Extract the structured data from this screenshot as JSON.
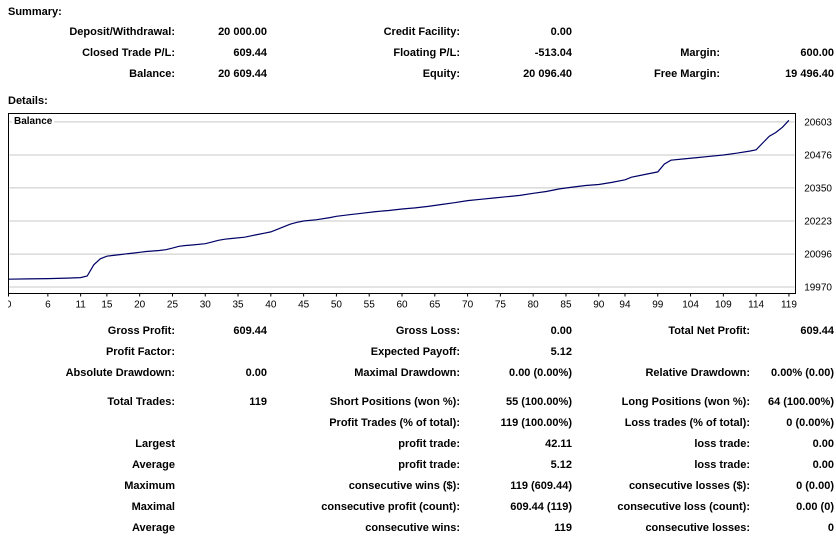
{
  "summary": {
    "heading": "Summary:",
    "rows": [
      [
        {
          "label": "Deposit/Withdrawal:",
          "value": "20 000.00"
        },
        {
          "label": "Credit Facility:",
          "value": "0.00"
        },
        {
          "label": "",
          "value": ""
        }
      ],
      [
        {
          "label": "Closed Trade P/L:",
          "value": "609.44"
        },
        {
          "label": "Floating P/L:",
          "value": "-513.04"
        },
        {
          "label": "Margin:",
          "value": "600.00"
        }
      ],
      [
        {
          "label": "Balance:",
          "value": "20 609.44"
        },
        {
          "label": "Equity:",
          "value": "20 096.40"
        },
        {
          "label": "Free Margin:",
          "value": "19 496.40"
        }
      ]
    ]
  },
  "details": {
    "heading": "Details:",
    "rows": [
      [
        {
          "label": "Gross Profit:",
          "value": "609.44"
        },
        {
          "label": "Gross Loss:",
          "value": "0.00"
        },
        {
          "label": "Total Net Profit:",
          "value": "609.44"
        }
      ],
      [
        {
          "label": "Profit Factor:",
          "value": ""
        },
        {
          "label": "Expected Payoff:",
          "value": "5.12"
        },
        {
          "label": "",
          "value": ""
        }
      ],
      [
        {
          "label": "Absolute Drawdown:",
          "value": "0.00"
        },
        {
          "label": "Maximal Drawdown:",
          "value": "0.00 (0.00%)"
        },
        {
          "label": "Relative Drawdown:",
          "value": "0.00% (0.00)"
        }
      ],
      "gap",
      [
        {
          "label": "Total Trades:",
          "value": "119"
        },
        {
          "label": "Short Positions (won %):",
          "value": "55 (100.00%)"
        },
        {
          "label": "Long Positions (won %):",
          "value": "64 (100.00%)"
        }
      ],
      [
        {
          "label": "",
          "value": ""
        },
        {
          "label": "Profit Trades (% of total):",
          "value": "119 (100.00%)"
        },
        {
          "label": "Loss trades (% of total):",
          "value": "0 (0.00%)"
        }
      ],
      [
        {
          "label": "Largest",
          "value": ""
        },
        {
          "label": "profit trade:",
          "value": "42.11"
        },
        {
          "label": "loss trade:",
          "value": "0.00"
        }
      ],
      [
        {
          "label": "Average",
          "value": ""
        },
        {
          "label": "profit trade:",
          "value": "5.12"
        },
        {
          "label": "loss trade:",
          "value": "0.00"
        }
      ],
      [
        {
          "label": "Maximum",
          "value": ""
        },
        {
          "label": "consecutive wins ($):",
          "value": "119 (609.44)"
        },
        {
          "label": "consecutive losses ($):",
          "value": "0 (0.00)"
        }
      ],
      [
        {
          "label": "Maximal",
          "value": ""
        },
        {
          "label": "consecutive profit (count):",
          "value": "609.44 (119)"
        },
        {
          "label": "consecutive loss (count):",
          "value": "0.00 (0)"
        }
      ],
      [
        {
          "label": "Average",
          "value": ""
        },
        {
          "label": "consecutive wins:",
          "value": "119"
        },
        {
          "label": "consecutive losses:",
          "value": "0"
        }
      ]
    ]
  },
  "chart_data": {
    "type": "line",
    "title": "Balance",
    "xlabel": "",
    "ylabel": "",
    "x_range": [
      0,
      120
    ],
    "y_range": [
      19945,
      20635
    ],
    "x_ticks": [
      0,
      6,
      11,
      15,
      20,
      25,
      30,
      35,
      40,
      45,
      50,
      55,
      60,
      65,
      70,
      75,
      80,
      85,
      90,
      94,
      99,
      104,
      109,
      114,
      119
    ],
    "y_ticks": [
      19970,
      20096,
      20223,
      20350,
      20476,
      20603
    ],
    "line_color": "#000066",
    "grid_color": "#c8c8c8",
    "series": [
      {
        "name": "Balance",
        "points": [
          [
            0,
            20000
          ],
          [
            3,
            20001
          ],
          [
            6,
            20002
          ],
          [
            9,
            20004
          ],
          [
            11,
            20006
          ],
          [
            12,
            20012
          ],
          [
            13,
            20055
          ],
          [
            14,
            20078
          ],
          [
            15,
            20088
          ],
          [
            16,
            20091
          ],
          [
            17,
            20094
          ],
          [
            18,
            20097
          ],
          [
            19,
            20100
          ],
          [
            20,
            20103
          ],
          [
            21,
            20106
          ],
          [
            22,
            20108
          ],
          [
            23,
            20110
          ],
          [
            24,
            20113
          ],
          [
            25,
            20119
          ],
          [
            26,
            20126
          ],
          [
            27,
            20129
          ],
          [
            28,
            20131
          ],
          [
            30,
            20136
          ],
          [
            31,
            20142
          ],
          [
            32,
            20149
          ],
          [
            33,
            20153
          ],
          [
            34,
            20156
          ],
          [
            36,
            20161
          ],
          [
            37,
            20166
          ],
          [
            38,
            20171
          ],
          [
            39,
            20176
          ],
          [
            40,
            20181
          ],
          [
            41,
            20191
          ],
          [
            42,
            20201
          ],
          [
            43,
            20211
          ],
          [
            44,
            20218
          ],
          [
            45,
            20223
          ],
          [
            47,
            20228
          ],
          [
            49,
            20236
          ],
          [
            50,
            20241
          ],
          [
            52,
            20247
          ],
          [
            54,
            20253
          ],
          [
            56,
            20259
          ],
          [
            58,
            20263
          ],
          [
            60,
            20269
          ],
          [
            62,
            20273
          ],
          [
            64,
            20279
          ],
          [
            66,
            20286
          ],
          [
            68,
            20293
          ],
          [
            70,
            20301
          ],
          [
            72,
            20306
          ],
          [
            74,
            20311
          ],
          [
            76,
            20316
          ],
          [
            78,
            20321
          ],
          [
            80,
            20329
          ],
          [
            82,
            20336
          ],
          [
            84,
            20346
          ],
          [
            86,
            20353
          ],
          [
            88,
            20359
          ],
          [
            90,
            20363
          ],
          [
            92,
            20371
          ],
          [
            94,
            20381
          ],
          [
            95,
            20391
          ],
          [
            97,
            20401
          ],
          [
            99,
            20411
          ],
          [
            100,
            20441
          ],
          [
            101,
            20456
          ],
          [
            103,
            20461
          ],
          [
            105,
            20466
          ],
          [
            107,
            20471
          ],
          [
            109,
            20476
          ],
          [
            111,
            20483
          ],
          [
            113,
            20491
          ],
          [
            114,
            20496
          ],
          [
            115,
            20522
          ],
          [
            116,
            20548
          ],
          [
            117,
            20562
          ],
          [
            118,
            20582
          ],
          [
            119,
            20609
          ]
        ]
      }
    ]
  }
}
